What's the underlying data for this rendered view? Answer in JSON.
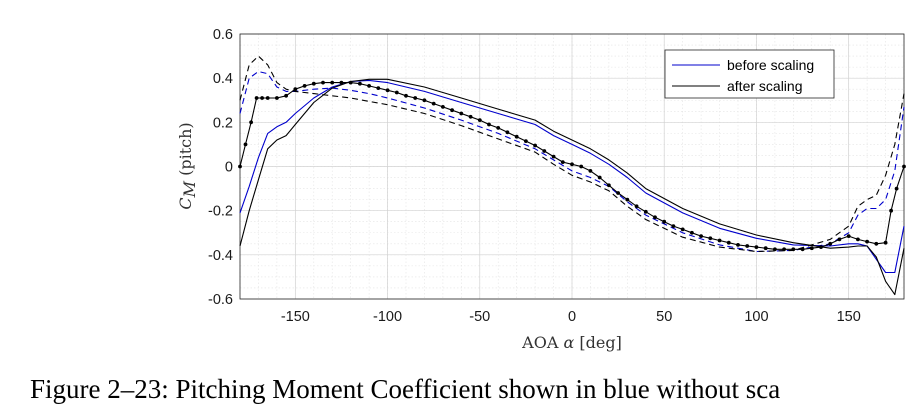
{
  "caption": "Figure 2–23: Pitching Moment Coefficient shown in blue without sca",
  "chart_data": {
    "type": "line",
    "title": "",
    "xlabel": "AOA α [deg]",
    "xlabel_parts": [
      "AOA ",
      "α",
      " [deg]"
    ],
    "ylabel": "C_M (pitch)",
    "ylabel_parts": [
      "C",
      "M",
      " (pitch)"
    ],
    "xlim": [
      -180,
      180
    ],
    "ylim": [
      -0.6,
      0.6
    ],
    "xticks": [
      -150,
      -100,
      -50,
      0,
      50,
      100,
      150
    ],
    "xtick_labels": [
      "-150",
      "-100",
      "-50",
      "0",
      "50",
      "100",
      "150"
    ],
    "yticks": [
      -0.6,
      -0.4,
      -0.2,
      0,
      0.2,
      0.4,
      0.6
    ],
    "ytick_labels": [
      "-0.6",
      "-0.4",
      "-0.2",
      "0",
      "0.2",
      "0.4",
      "0.6"
    ],
    "grid": true,
    "minor_grid": true,
    "legend_position": "top-right",
    "legend": [
      {
        "label": "before scaling",
        "color": "#0000cc"
      },
      {
        "label": "after scaling",
        "color": "#000000"
      }
    ],
    "series": [
      {
        "name": "before scaling",
        "color": "#0000cc",
        "dash": "solid",
        "x": [
          -180,
          -175,
          -170,
          -165,
          -160,
          -155,
          -150,
          -140,
          -130,
          -120,
          -110,
          -100,
          -80,
          -60,
          -40,
          -20,
          -10,
          0,
          10,
          20,
          30,
          40,
          60,
          80,
          100,
          120,
          140,
          150,
          155,
          160,
          165,
          170,
          175,
          180
        ],
        "y": [
          -0.21,
          -0.09,
          0.04,
          0.15,
          0.18,
          0.2,
          0.24,
          0.31,
          0.36,
          0.385,
          0.39,
          0.38,
          0.34,
          0.29,
          0.24,
          0.19,
          0.14,
          0.1,
          0.06,
          0.01,
          -0.05,
          -0.12,
          -0.21,
          -0.28,
          -0.325,
          -0.355,
          -0.36,
          -0.35,
          -0.35,
          -0.36,
          -0.42,
          -0.48,
          -0.48,
          -0.27
        ]
      },
      {
        "name": "before scaling",
        "color": "#0000cc",
        "dash": "dashed",
        "x": [
          -180,
          -175,
          -170,
          -165,
          -160,
          -155,
          -150,
          -140,
          -130,
          -120,
          -110,
          -100,
          -80,
          -60,
          -40,
          -20,
          -10,
          0,
          10,
          20,
          30,
          40,
          60,
          80,
          100,
          120,
          140,
          150,
          155,
          160,
          165,
          170,
          175,
          180
        ],
        "y": [
          0.24,
          0.4,
          0.43,
          0.42,
          0.36,
          0.34,
          0.34,
          0.35,
          0.355,
          0.345,
          0.33,
          0.31,
          0.265,
          0.21,
          0.15,
          0.08,
          0.03,
          -0.02,
          -0.05,
          -0.09,
          -0.16,
          -0.22,
          -0.3,
          -0.355,
          -0.385,
          -0.38,
          -0.35,
          -0.3,
          -0.22,
          -0.19,
          -0.19,
          -0.15,
          -0.02,
          0.27
        ]
      },
      {
        "name": "after scaling",
        "color": "#000000",
        "dash": "solid",
        "x": [
          -180,
          -175,
          -170,
          -165,
          -160,
          -155,
          -150,
          -140,
          -130,
          -120,
          -110,
          -100,
          -80,
          -60,
          -40,
          -20,
          -10,
          0,
          10,
          20,
          30,
          40,
          60,
          80,
          100,
          120,
          140,
          150,
          155,
          160,
          165,
          170,
          175,
          180
        ],
        "y": [
          -0.36,
          -0.2,
          -0.06,
          0.08,
          0.12,
          0.14,
          0.19,
          0.29,
          0.355,
          0.385,
          0.395,
          0.395,
          0.36,
          0.31,
          0.26,
          0.21,
          0.16,
          0.12,
          0.08,
          0.03,
          -0.03,
          -0.1,
          -0.19,
          -0.26,
          -0.31,
          -0.345,
          -0.37,
          -0.365,
          -0.36,
          -0.36,
          -0.41,
          -0.52,
          -0.58,
          -0.37
        ]
      },
      {
        "name": "after scaling",
        "color": "#000000",
        "dash": "dashed",
        "x": [
          -180,
          -175,
          -170,
          -165,
          -160,
          -155,
          -150,
          -140,
          -130,
          -120,
          -110,
          -100,
          -80,
          -60,
          -40,
          -20,
          -10,
          0,
          10,
          20,
          30,
          40,
          60,
          80,
          100,
          120,
          140,
          150,
          155,
          160,
          165,
          170,
          175,
          180
        ],
        "y": [
          0.3,
          0.46,
          0.5,
          0.46,
          0.38,
          0.35,
          0.34,
          0.33,
          0.32,
          0.31,
          0.295,
          0.28,
          0.24,
          0.185,
          0.125,
          0.065,
          0.01,
          -0.04,
          -0.07,
          -0.11,
          -0.18,
          -0.24,
          -0.32,
          -0.365,
          -0.385,
          -0.38,
          -0.33,
          -0.27,
          -0.18,
          -0.15,
          -0.13,
          -0.04,
          0.1,
          0.33
        ]
      },
      {
        "name": "after scaling",
        "color": "#000000",
        "dash": "dotted-markers",
        "x": [
          -180,
          -177,
          -174,
          -171,
          -168,
          -165,
          -160,
          -155,
          -150,
          -145,
          -140,
          -135,
          -130,
          -125,
          -120,
          -115,
          -110,
          -105,
          -100,
          -95,
          -90,
          -85,
          -80,
          -75,
          -70,
          -65,
          -60,
          -55,
          -50,
          -45,
          -40,
          -35,
          -30,
          -25,
          -20,
          -15,
          -10,
          -5,
          0,
          5,
          10,
          15,
          20,
          25,
          30,
          35,
          40,
          45,
          50,
          55,
          60,
          65,
          70,
          75,
          80,
          85,
          90,
          95,
          100,
          105,
          110,
          115,
          120,
          125,
          130,
          135,
          140,
          145,
          150,
          155,
          160,
          165,
          170,
          173,
          176,
          180
        ],
        "y": [
          0.0,
          0.1,
          0.2,
          0.31,
          0.31,
          0.31,
          0.31,
          0.32,
          0.35,
          0.365,
          0.375,
          0.38,
          0.38,
          0.38,
          0.38,
          0.375,
          0.365,
          0.355,
          0.345,
          0.335,
          0.32,
          0.31,
          0.3,
          0.285,
          0.27,
          0.255,
          0.24,
          0.225,
          0.21,
          0.19,
          0.175,
          0.155,
          0.135,
          0.115,
          0.095,
          0.07,
          0.045,
          0.02,
          0.01,
          0.0,
          -0.02,
          -0.05,
          -0.085,
          -0.12,
          -0.15,
          -0.18,
          -0.205,
          -0.23,
          -0.25,
          -0.27,
          -0.285,
          -0.3,
          -0.315,
          -0.325,
          -0.335,
          -0.345,
          -0.355,
          -0.36,
          -0.365,
          -0.37,
          -0.375,
          -0.375,
          -0.375,
          -0.375,
          -0.37,
          -0.365,
          -0.35,
          -0.33,
          -0.315,
          -0.33,
          -0.34,
          -0.35,
          -0.345,
          -0.2,
          -0.1,
          0.0
        ]
      }
    ]
  }
}
